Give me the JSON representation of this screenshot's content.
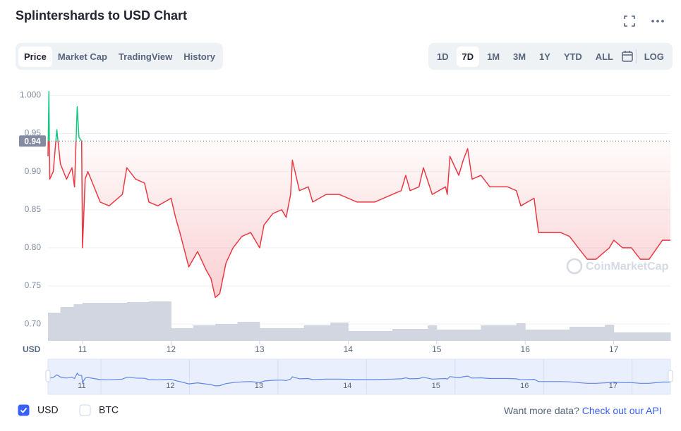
{
  "header": {
    "title": "Splintershards to USD Chart"
  },
  "tabs": [
    "Price",
    "Market Cap",
    "TradingView",
    "History"
  ],
  "ranges": [
    "1D",
    "7D",
    "1M",
    "3M",
    "1Y",
    "YTD",
    "ALL"
  ],
  "log_button": "LOG",
  "chart_data": {
    "type": "line",
    "currency_label": "USD",
    "watermark": "CoinMarketCap",
    "x": [
      10.61,
      10.62,
      10.63,
      10.67,
      10.71,
      10.75,
      10.82,
      10.88,
      10.91,
      10.94,
      10.96,
      10.99,
      11.0,
      11.03,
      11.06,
      11.2,
      11.3,
      11.45,
      11.5,
      11.6,
      11.7,
      11.75,
      11.85,
      12.0,
      12.05,
      12.1,
      12.2,
      12.3,
      12.4,
      12.45,
      12.5,
      12.55,
      12.62,
      12.7,
      12.8,
      12.9,
      12.95,
      13.0,
      13.05,
      13.15,
      13.25,
      13.3,
      13.35,
      13.37,
      13.45,
      13.55,
      13.6,
      13.75,
      13.9,
      14.1,
      14.3,
      14.5,
      14.6,
      14.65,
      14.7,
      14.8,
      14.85,
      14.95,
      15.1,
      15.12,
      15.15,
      15.25,
      15.3,
      15.35,
      15.4,
      15.5,
      15.6,
      15.8,
      15.9,
      15.95,
      16.1,
      16.15,
      16.25,
      16.4,
      16.5,
      16.6,
      16.7,
      16.8,
      16.95,
      17.0,
      17.1,
      17.2,
      17.3,
      17.4,
      17.55,
      17.64
    ],
    "values": [
      0.92,
      1.005,
      0.89,
      0.9,
      0.955,
      0.91,
      0.89,
      0.905,
      0.88,
      0.985,
      0.945,
      0.94,
      0.8,
      0.89,
      0.9,
      0.86,
      0.855,
      0.87,
      0.905,
      0.89,
      0.885,
      0.86,
      0.855,
      0.865,
      0.84,
      0.82,
      0.775,
      0.795,
      0.77,
      0.76,
      0.735,
      0.74,
      0.78,
      0.8,
      0.815,
      0.82,
      0.81,
      0.8,
      0.83,
      0.845,
      0.85,
      0.84,
      0.87,
      0.915,
      0.875,
      0.88,
      0.86,
      0.87,
      0.87,
      0.86,
      0.86,
      0.87,
      0.875,
      0.895,
      0.875,
      0.88,
      0.905,
      0.87,
      0.88,
      0.87,
      0.92,
      0.895,
      0.915,
      0.93,
      0.89,
      0.895,
      0.88,
      0.88,
      0.875,
      0.855,
      0.865,
      0.82,
      0.82,
      0.82,
      0.815,
      0.8,
      0.785,
      0.785,
      0.8,
      0.81,
      0.8,
      0.8,
      0.785,
      0.785,
      0.81,
      0.81
    ],
    "color": "#ea3943",
    "up_color": "#16c784",
    "current_price": 0.94,
    "volume": {
      "bins": [
        10.61,
        10.75,
        10.9,
        11.0,
        11.25,
        11.5,
        11.75,
        12.0,
        12.25,
        12.5,
        12.75,
        13.0,
        13.5,
        13.8,
        14.0,
        14.5,
        14.9,
        15.0,
        15.5,
        15.9,
        16.0,
        16.5,
        16.9,
        17.0,
        17.64
      ],
      "values": [
        40,
        48,
        52,
        54,
        54,
        55,
        56,
        18,
        22,
        24,
        27,
        18,
        22,
        26,
        14,
        17,
        22,
        16,
        22,
        25,
        16,
        20,
        23,
        12
      ],
      "color": "#d1d6e0"
    },
    "navigator_color": "#5f86e8",
    "xlim": [
      10.61,
      17.64
    ],
    "xticks": [
      11,
      12,
      13,
      14,
      15,
      16,
      17
    ],
    "ylim": [
      0.678,
      1.016
    ],
    "yticks": [
      {
        "value": 0.7,
        "label": "0.70"
      },
      0.75,
      {
        "value": 0.8,
        "label": "0.80"
      },
      0.85,
      {
        "value": 0.9,
        "label": "0.90"
      },
      0.95,
      {
        "value": 1,
        "label": "1.000"
      }
    ],
    "grid": true
  },
  "legend": [
    {
      "label": "USD",
      "checked": true
    },
    {
      "label": "BTC",
      "checked": false
    }
  ],
  "footer": {
    "prompt": "Want more data?",
    "link": "Check out our API"
  }
}
